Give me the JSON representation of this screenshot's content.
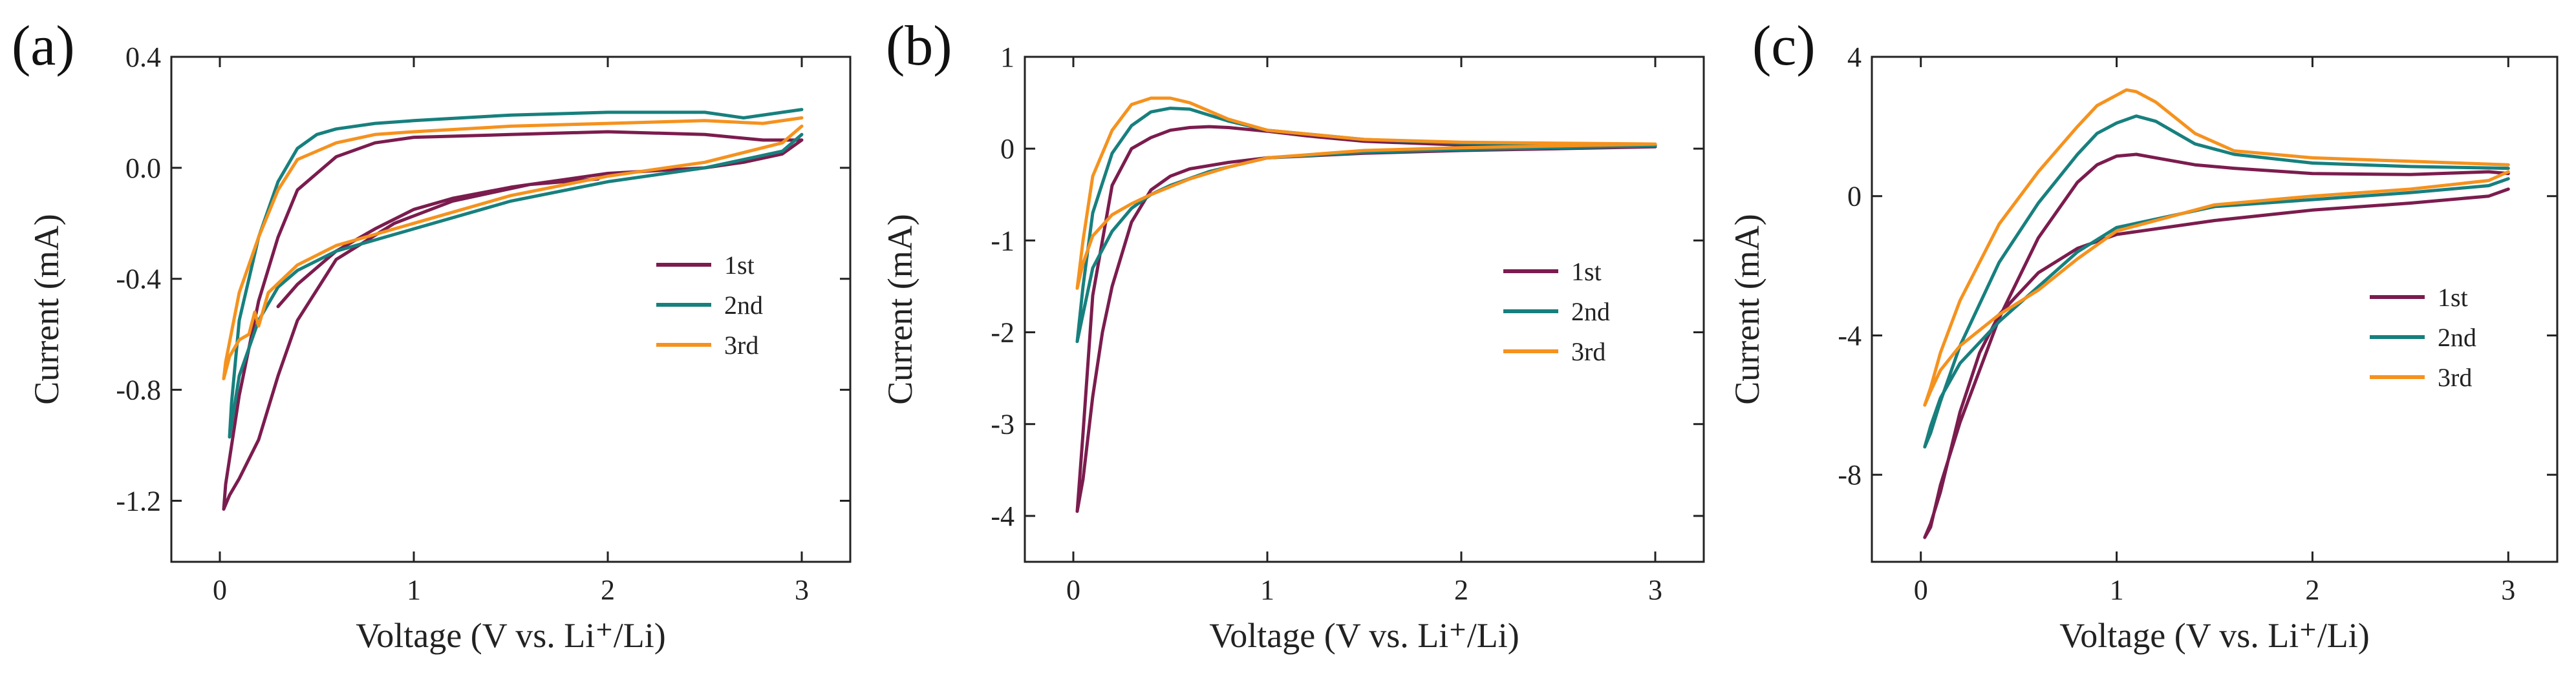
{
  "chart_data": [
    {
      "panel": "(a)",
      "type": "line",
      "xlabel": "Voltage (V vs. Li⁺/Li)",
      "ylabel": "Current (mA)",
      "xlim": [
        -0.25,
        3.25
      ],
      "ylim": [
        -1.42,
        0.4
      ],
      "xticks": [
        0,
        1,
        2,
        3
      ],
      "xtick_labels": [
        "0",
        "1",
        "2",
        "3"
      ],
      "yticks": [
        0.4,
        0.0,
        -0.4,
        -0.8,
        -1.2
      ],
      "ytick_labels": [
        "0.4",
        "0.0",
        "-0.4",
        "-0.8",
        "-1.2"
      ],
      "legend": {
        "position": "center-right"
      },
      "series": [
        {
          "name": "1st",
          "color": "#7b1c4e",
          "x": [
            1.95,
            1.6,
            1.2,
            0.9,
            0.6,
            0.4,
            0.3,
            0.2,
            0.1,
            0.05,
            0.02,
            0.03,
            0.1,
            0.2,
            0.3,
            0.4,
            0.6,
            0.8,
            1.0,
            1.5,
            2.0,
            2.5,
            2.8,
            3.0,
            2.9,
            2.7,
            2.5,
            2.0,
            1.5,
            1.2,
            1.0,
            0.8,
            0.6,
            0.5,
            0.4,
            0.3
          ],
          "y": [
            -0.04,
            -0.06,
            -0.12,
            -0.2,
            -0.33,
            -0.55,
            -0.75,
            -0.98,
            -1.12,
            -1.18,
            -1.23,
            -1.14,
            -0.82,
            -0.48,
            -0.25,
            -0.08,
            0.04,
            0.09,
            0.11,
            0.12,
            0.13,
            0.12,
            0.1,
            0.1,
            0.05,
            0.02,
            0.0,
            -0.02,
            -0.07,
            -0.11,
            -0.15,
            -0.22,
            -0.3,
            -0.36,
            -0.42,
            -0.5
          ]
        },
        {
          "name": "2nd",
          "color": "#17807e",
          "x": [
            3.0,
            2.9,
            2.5,
            2.0,
            1.5,
            1.0,
            0.6,
            0.4,
            0.3,
            0.2,
            0.1,
            0.05,
            0.06,
            0.1,
            0.2,
            0.3,
            0.4,
            0.5,
            0.6,
            0.8,
            1.0,
            1.5,
            2.0,
            2.5,
            2.7,
            2.9,
            3.0
          ],
          "y": [
            0.12,
            0.06,
            0.0,
            -0.05,
            -0.12,
            -0.22,
            -0.3,
            -0.37,
            -0.43,
            -0.55,
            -0.75,
            -0.97,
            -0.85,
            -0.55,
            -0.25,
            -0.05,
            0.07,
            0.12,
            0.14,
            0.16,
            0.17,
            0.19,
            0.2,
            0.2,
            0.18,
            0.2,
            0.21
          ]
        },
        {
          "name": "3rd",
          "color": "#f5921e",
          "x": [
            3.0,
            2.9,
            2.5,
            2.0,
            1.5,
            1.0,
            0.6,
            0.4,
            0.25,
            0.2,
            0.18,
            0.15,
            0.1,
            0.05,
            0.02,
            0.03,
            0.1,
            0.2,
            0.3,
            0.4,
            0.6,
            0.8,
            1.0,
            1.5,
            2.0,
            2.5,
            2.8,
            3.0
          ],
          "y": [
            0.15,
            0.09,
            0.02,
            -0.03,
            -0.1,
            -0.2,
            -0.28,
            -0.35,
            -0.45,
            -0.57,
            -0.52,
            -0.6,
            -0.62,
            -0.68,
            -0.76,
            -0.7,
            -0.45,
            -0.25,
            -0.08,
            0.03,
            0.09,
            0.12,
            0.13,
            0.15,
            0.16,
            0.17,
            0.16,
            0.18
          ]
        }
      ]
    },
    {
      "panel": "(b)",
      "type": "line",
      "xlabel": "Voltage (V vs. Li⁺/Li)",
      "ylabel": "Current (mA)",
      "xlim": [
        -0.25,
        3.25
      ],
      "ylim": [
        -4.5,
        1.0
      ],
      "xticks": [
        0,
        1,
        2,
        3
      ],
      "xtick_labels": [
        "0",
        "1",
        "2",
        "3"
      ],
      "yticks": [
        1,
        0,
        -1,
        -2,
        -3,
        -4
      ],
      "ytick_labels": [
        "1",
        "0",
        "-1",
        "-2",
        "-3",
        "-4"
      ],
      "legend": {
        "position": "center-right"
      },
      "series": [
        {
          "name": "1st",
          "color": "#7b1c4e",
          "x": [
            3.0,
            2.5,
            2.0,
            1.5,
            1.0,
            0.8,
            0.6,
            0.5,
            0.4,
            0.3,
            0.2,
            0.15,
            0.1,
            0.05,
            0.02,
            0.05,
            0.1,
            0.2,
            0.3,
            0.4,
            0.5,
            0.6,
            0.7,
            0.8,
            1.0,
            1.2,
            1.5,
            2.0,
            2.5,
            3.0
          ],
          "y": [
            0.02,
            0.0,
            -0.02,
            -0.05,
            -0.1,
            -0.15,
            -0.22,
            -0.3,
            -0.45,
            -0.8,
            -1.5,
            -2.0,
            -2.7,
            -3.6,
            -3.95,
            -3.1,
            -1.6,
            -0.4,
            0.0,
            0.12,
            0.2,
            0.23,
            0.24,
            0.23,
            0.19,
            0.14,
            0.08,
            0.04,
            0.03,
            0.02
          ]
        },
        {
          "name": "2nd",
          "color": "#17807e",
          "x": [
            3.0,
            2.5,
            2.0,
            1.5,
            1.0,
            0.7,
            0.5,
            0.4,
            0.3,
            0.2,
            0.1,
            0.05,
            0.02,
            0.05,
            0.1,
            0.2,
            0.3,
            0.4,
            0.5,
            0.6,
            0.8,
            1.0,
            1.5,
            2.0,
            2.5,
            3.0
          ],
          "y": [
            0.03,
            0.01,
            -0.01,
            -0.04,
            -0.1,
            -0.25,
            -0.4,
            -0.5,
            -0.65,
            -0.9,
            -1.3,
            -1.8,
            -2.1,
            -1.5,
            -0.7,
            -0.05,
            0.25,
            0.4,
            0.44,
            0.43,
            0.3,
            0.2,
            0.1,
            0.06,
            0.05,
            0.04
          ]
        },
        {
          "name": "3rd",
          "color": "#f5921e",
          "x": [
            3.0,
            2.5,
            2.0,
            1.5,
            1.0,
            0.8,
            0.6,
            0.4,
            0.3,
            0.2,
            0.1,
            0.05,
            0.02,
            0.05,
            0.1,
            0.2,
            0.3,
            0.4,
            0.5,
            0.6,
            0.8,
            1.0,
            1.5,
            2.0,
            2.5,
            3.0
          ],
          "y": [
            0.05,
            0.03,
            0.01,
            -0.02,
            -0.1,
            -0.2,
            -0.33,
            -0.5,
            -0.6,
            -0.72,
            -0.95,
            -1.25,
            -1.52,
            -1.0,
            -0.3,
            0.2,
            0.48,
            0.55,
            0.55,
            0.5,
            0.32,
            0.2,
            0.1,
            0.07,
            0.06,
            0.05
          ]
        }
      ]
    },
    {
      "panel": "(c)",
      "type": "line",
      "xlabel": "Voltage (V vs. Li⁺/Li)",
      "ylabel": "Current (mA)",
      "xlim": [
        -0.25,
        3.25
      ],
      "ylim": [
        -10.5,
        4.0
      ],
      "xticks": [
        0,
        1,
        2,
        3
      ],
      "xtick_labels": [
        "0",
        "1",
        "2",
        "3"
      ],
      "yticks": [
        4,
        0,
        -4,
        -8
      ],
      "ytick_labels": [
        "4",
        "0",
        "-4",
        "-8"
      ],
      "legend": {
        "position": "center-right"
      },
      "series": [
        {
          "name": "1st",
          "color": "#7b1c4e",
          "x": [
            3.0,
            2.9,
            2.5,
            2.0,
            1.5,
            1.0,
            0.8,
            0.6,
            0.4,
            0.3,
            0.2,
            0.1,
            0.05,
            0.02,
            0.05,
            0.1,
            0.2,
            0.4,
            0.6,
            0.8,
            0.9,
            1.0,
            1.1,
            1.2,
            1.4,
            1.6,
            2.0,
            2.5,
            2.9,
            3.0
          ],
          "y": [
            0.2,
            0.0,
            -0.2,
            -0.4,
            -0.7,
            -1.1,
            -1.5,
            -2.2,
            -3.4,
            -4.5,
            -6.2,
            -8.5,
            -9.4,
            -9.8,
            -9.5,
            -8.3,
            -6.5,
            -3.5,
            -1.2,
            0.4,
            0.9,
            1.15,
            1.2,
            1.1,
            0.9,
            0.8,
            0.65,
            0.62,
            0.7,
            0.65
          ]
        },
        {
          "name": "2nd",
          "color": "#17807e",
          "x": [
            3.0,
            2.9,
            2.5,
            2.0,
            1.5,
            1.0,
            0.8,
            0.6,
            0.4,
            0.2,
            0.1,
            0.05,
            0.02,
            0.05,
            0.1,
            0.2,
            0.4,
            0.6,
            0.8,
            0.9,
            1.0,
            1.1,
            1.2,
            1.4,
            1.6,
            2.0,
            2.5,
            3.0
          ],
          "y": [
            0.5,
            0.3,
            0.1,
            -0.1,
            -0.3,
            -0.9,
            -1.6,
            -2.6,
            -3.6,
            -4.8,
            -5.8,
            -6.6,
            -7.2,
            -6.8,
            -5.9,
            -4.3,
            -1.9,
            -0.2,
            1.2,
            1.8,
            2.1,
            2.3,
            2.15,
            1.5,
            1.2,
            0.95,
            0.85,
            0.8
          ]
        },
        {
          "name": "3rd",
          "color": "#f5921e",
          "x": [
            3.0,
            2.9,
            2.5,
            2.0,
            1.5,
            1.0,
            0.8,
            0.6,
            0.4,
            0.2,
            0.1,
            0.05,
            0.02,
            0.05,
            0.1,
            0.2,
            0.4,
            0.6,
            0.8,
            0.9,
            1.0,
            1.05,
            1.1,
            1.2,
            1.4,
            1.6,
            2.0,
            2.5,
            3.0
          ],
          "y": [
            0.7,
            0.45,
            0.2,
            0.0,
            -0.25,
            -1.0,
            -1.8,
            -2.7,
            -3.4,
            -4.3,
            -5.0,
            -5.6,
            -6.0,
            -5.5,
            -4.5,
            -3.0,
            -0.8,
            0.7,
            2.0,
            2.6,
            2.9,
            3.05,
            3.0,
            2.7,
            1.8,
            1.3,
            1.1,
            1.0,
            0.9
          ]
        }
      ]
    }
  ]
}
